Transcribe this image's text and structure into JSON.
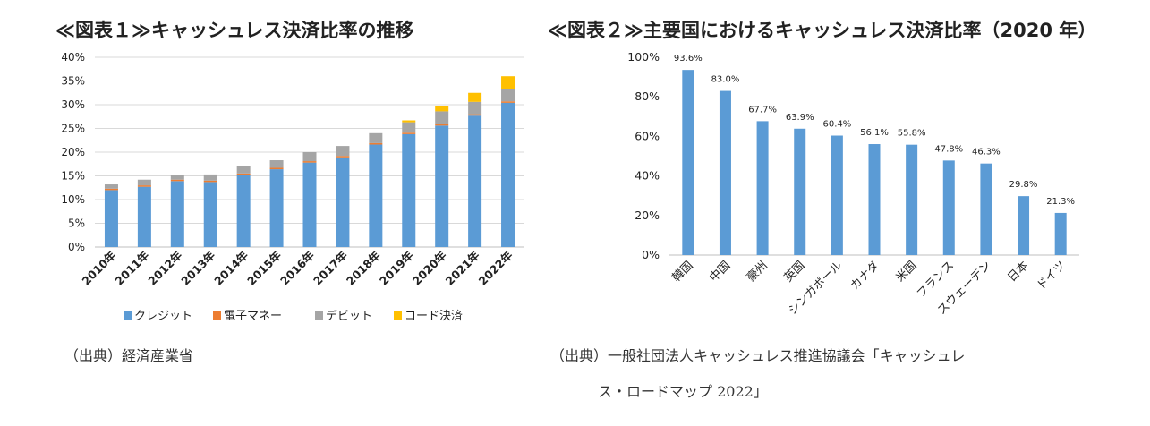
{
  "chart1": {
    "title": "≪図表１≫キャッシュレス決済比率の推移",
    "source": "（出典）経済産業省"
  },
  "chart2": {
    "title": "≪図表２≫主要国におけるキャッシュレス決済比率（2020 年）",
    "source_line1": "（出典）一般社団法人キャッシュレス推進協議会「キャッシュレ",
    "source_line2": "ス・ロードマップ 2022」"
  },
  "chart_data": [
    {
      "type": "bar",
      "stacked": true,
      "title": "≪図表１≫キャッシュレス決済比率の推移",
      "categories": [
        "2010年",
        "2011年",
        "2012年",
        "2013年",
        "2014年",
        "2015年",
        "2016年",
        "2017年",
        "2018年",
        "2019年",
        "2020年",
        "2021年",
        "2022年"
      ],
      "yticks": [
        "0%",
        "5%",
        "10%",
        "15%",
        "20%",
        "25%",
        "30%",
        "35%",
        "40%"
      ],
      "ylim": [
        0,
        40
      ],
      "grid": true,
      "legend_position": "bottom",
      "series": [
        {
          "name": "クレジット",
          "color": "#5B9BD5",
          "values": [
            12.0,
            12.7,
            13.9,
            13.7,
            15.2,
            16.4,
            17.8,
            18.9,
            21.6,
            23.8,
            25.6,
            27.7,
            30.4
          ]
        },
        {
          "name": "電子マネー",
          "color": "#ED7D31",
          "values": [
            0.3,
            0.3,
            0.3,
            0.3,
            0.3,
            0.3,
            0.3,
            0.3,
            0.3,
            0.3,
            0.3,
            0.3,
            0.3
          ]
        },
        {
          "name": "デビット",
          "color": "#A5A5A5",
          "values": [
            0.9,
            1.2,
            1.0,
            1.3,
            1.5,
            1.6,
            1.9,
            2.1,
            2.1,
            2.2,
            2.7,
            2.6,
            2.6
          ]
        },
        {
          "name": "コード決済",
          "color": "#FFC000",
          "values": [
            0,
            0,
            0,
            0,
            0,
            0,
            0,
            0,
            0,
            0.4,
            1.2,
            1.9,
            2.7
          ]
        }
      ]
    },
    {
      "type": "bar",
      "title": "≪図表２≫主要国におけるキャッシュレス決済比率（2020 年）",
      "categories": [
        "韓国",
        "中国",
        "豪州",
        "英国",
        "シンガポール",
        "カナダ",
        "米国",
        "フランス",
        "スウェーデン",
        "日本",
        "ドイツ"
      ],
      "values": [
        93.6,
        83.0,
        67.7,
        63.9,
        60.4,
        56.1,
        55.8,
        47.8,
        46.3,
        29.8,
        21.3
      ],
      "data_labels": [
        "93.6%",
        "83.0%",
        "67.7%",
        "63.9%",
        "60.4%",
        "56.1%",
        "55.8%",
        "47.8%",
        "46.3%",
        "29.8%",
        "21.3%"
      ],
      "yticks": [
        "0%",
        "20%",
        "40%",
        "60%",
        "80%",
        "100%"
      ],
      "ylim": [
        0,
        100
      ],
      "grid": false,
      "color": "#5B9BD5"
    }
  ]
}
